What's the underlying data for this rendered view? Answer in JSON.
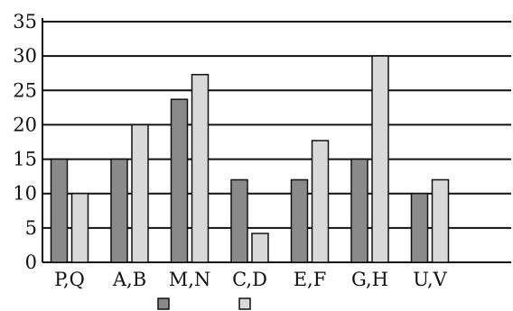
{
  "chart_data": {
    "type": "bar",
    "title": "",
    "xlabel": "",
    "ylabel": "",
    "categories": [
      "P,Q",
      "A,B",
      "M,N",
      "C,D",
      "E,F",
      "G,H",
      "U,V"
    ],
    "series": [
      {
        "values": [
          15,
          15,
          23.7,
          12,
          12,
          15,
          10
        ]
      },
      {
        "values": [
          10,
          20,
          27.3,
          4.2,
          17.7,
          30,
          12
        ]
      }
    ],
    "ylim": [
      0,
      35
    ],
    "yticks": [
      0,
      5,
      10,
      15,
      20,
      25,
      30,
      35
    ],
    "grid": true,
    "legend": "bottom-center",
    "colors": {
      "series_0": "#8a8a8a",
      "series_1": "#d9d9d9",
      "outline": "#111111",
      "grid": "#111111"
    }
  }
}
